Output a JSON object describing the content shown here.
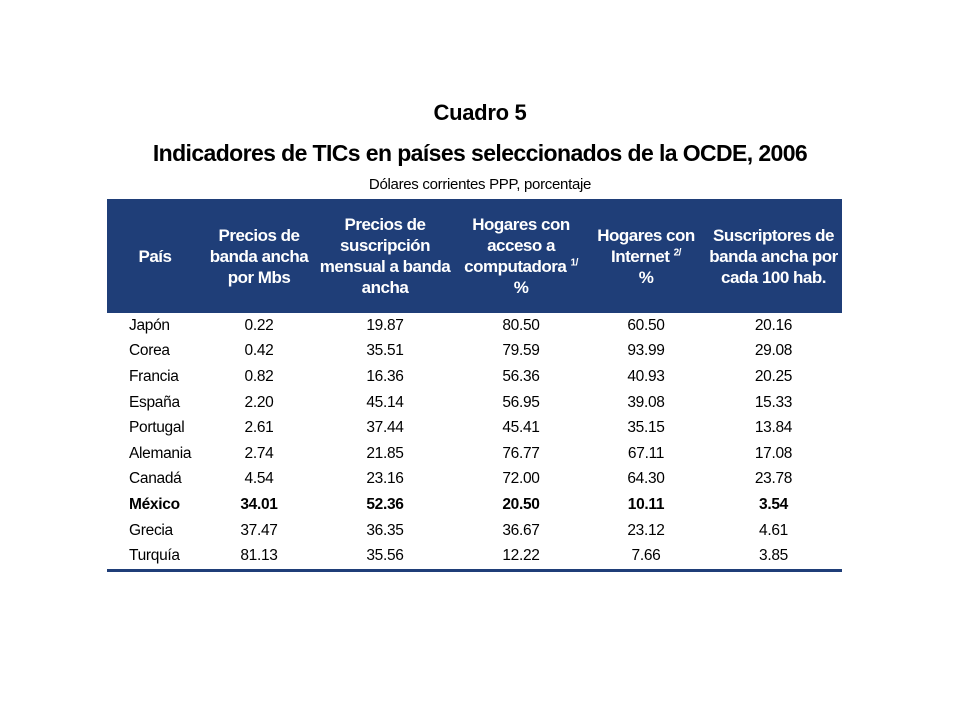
{
  "heading": "Cuadro 5",
  "title": "Indicadores de TICs en países seleccionados de la OCDE, 2006",
  "subtitle": "Dólares corrientes PPP, porcentaje",
  "table": {
    "headers": [
      {
        "text": "País",
        "sup": ""
      },
      {
        "text": "Precios de banda ancha por Mbs",
        "sup": ""
      },
      {
        "text": "Precios de suscripción mensual a banda ancha",
        "sup": ""
      },
      {
        "text": "Hogares con acceso a computadora",
        "sup": "1/",
        "suffix": "%"
      },
      {
        "text": "Hogares con Internet",
        "sup": "2/",
        "suffix": "%"
      },
      {
        "text": "Suscriptores de banda ancha por cada 100 hab.",
        "sup": ""
      }
    ],
    "rows": [
      [
        "Japón",
        "0.22",
        "19.87",
        "80.50",
        "60.50",
        "20.16"
      ],
      [
        "Corea",
        "0.42",
        "35.51",
        "79.59",
        "93.99",
        "29.08"
      ],
      [
        "Francia",
        "0.82",
        "16.36",
        "56.36",
        "40.93",
        "20.25"
      ],
      [
        "España",
        "2.20",
        "45.14",
        "56.95",
        "39.08",
        "15.33"
      ],
      [
        "Portugal",
        "2.61",
        "37.44",
        "45.41",
        "35.15",
        "13.84"
      ],
      [
        "Alemania",
        "2.74",
        "21.85",
        "76.77",
        "67.11",
        "17.08"
      ],
      [
        "Canadá",
        "4.54",
        "23.16",
        "72.00",
        "64.30",
        "23.78"
      ],
      [
        "México",
        "34.01",
        "52.36",
        "20.50",
        "10.11",
        "3.54"
      ],
      [
        "Grecia",
        "37.47",
        "36.35",
        "36.67",
        "23.12",
        "4.61"
      ],
      [
        "Turquía",
        "81.13",
        "35.56",
        "12.22",
        "7.66",
        "3.85"
      ]
    ],
    "highlight_row": "México",
    "header_color": "#1f3e78"
  }
}
